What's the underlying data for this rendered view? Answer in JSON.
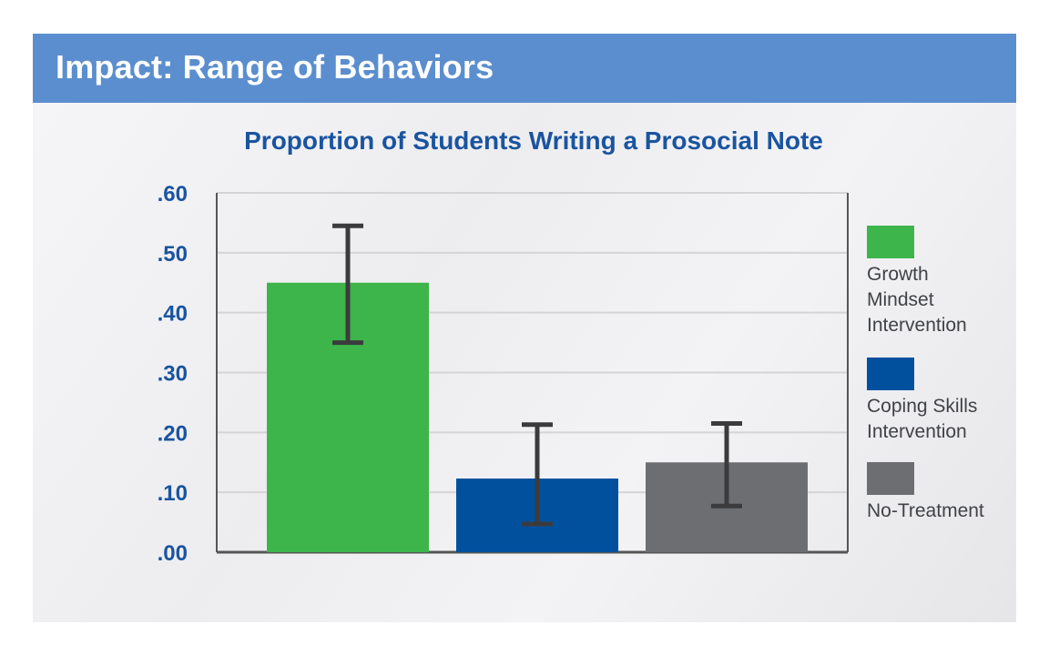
{
  "header": {
    "title": "Impact: Range of Behaviors"
  },
  "colors": {
    "header_bg": "#5b8ece",
    "title_blue": "#1a54a0",
    "growth": "#3db54a",
    "coping": "#00509e",
    "notreat": "#6d6e71",
    "error_bar": "#3b3b3d",
    "axis": "#555555",
    "grid": "#d4d4d6"
  },
  "chart_data": {
    "type": "bar",
    "title": "Proportion of Students Writing a Prosocial Note",
    "xlabel": "",
    "ylabel": "",
    "ylim": [
      0,
      0.6
    ],
    "yticks": [
      ".00",
      ".10",
      ".20",
      ".30",
      ".40",
      ".50",
      ".60"
    ],
    "grid": true,
    "legend_position": "right",
    "series": [
      {
        "name": "Growth Mindset Intervention",
        "value": 0.45,
        "error_low": 0.35,
        "error_high": 0.545,
        "color": "#3db54a"
      },
      {
        "name": "Coping Skills Intervention",
        "value": 0.123,
        "error_low": 0.047,
        "error_high": 0.213,
        "color": "#00509e"
      },
      {
        "name": "No-Treatment",
        "value": 0.15,
        "error_low": 0.077,
        "error_high": 0.215,
        "color": "#6d6e71"
      }
    ]
  },
  "legend": {
    "items": [
      {
        "label": "Growth\nMindset\nIntervention",
        "color": "#3db54a"
      },
      {
        "label": "Coping Skills\nIntervention",
        "color": "#00509e"
      },
      {
        "label": "No-Treatment",
        "color": "#6d6e71"
      }
    ]
  }
}
